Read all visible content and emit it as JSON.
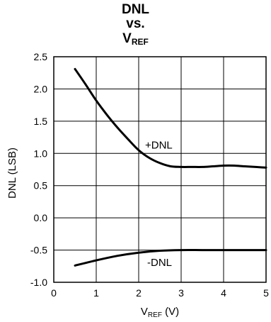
{
  "chart_data": {
    "type": "line",
    "title": {
      "line1": "DNL",
      "line2": "vs.",
      "line3_main": "V",
      "line3_sub": "REF"
    },
    "xlabel": {
      "main": "V",
      "sub": "REF",
      "suffix": " (V)"
    },
    "ylabel": "DNL (LSB)",
    "xlim": [
      0,
      5
    ],
    "ylim": [
      -1.0,
      2.5
    ],
    "x_ticks": [
      {
        "value": 0,
        "label": "0"
      },
      {
        "value": 1,
        "label": "1"
      },
      {
        "value": 2,
        "label": "2"
      },
      {
        "value": 3,
        "label": "3"
      },
      {
        "value": 4,
        "label": "4"
      },
      {
        "value": 5,
        "label": "5"
      }
    ],
    "y_ticks": [
      {
        "value": -1.0,
        "label": "-1.0"
      },
      {
        "value": -0.5,
        "label": "-0.5"
      },
      {
        "value": 0.0,
        "label": "0.0"
      },
      {
        "value": 0.5,
        "label": "0.5"
      },
      {
        "value": 1.0,
        "label": "1.0"
      },
      {
        "value": 1.5,
        "label": "1.5"
      },
      {
        "value": 2.0,
        "label": "2.0"
      },
      {
        "value": 2.5,
        "label": "2.5"
      }
    ],
    "grid": true,
    "series": [
      {
        "name": "+DNL",
        "color": "#000000",
        "x": [
          0.5,
          0.75,
          1.0,
          1.25,
          1.5,
          1.75,
          2.0,
          2.25,
          2.5,
          2.75,
          3.0,
          3.25,
          3.5,
          3.75,
          4.0,
          4.25,
          4.5,
          4.75,
          5.0
        ],
        "y": [
          2.31,
          2.07,
          1.82,
          1.6,
          1.4,
          1.22,
          1.05,
          0.93,
          0.85,
          0.8,
          0.79,
          0.79,
          0.79,
          0.8,
          0.81,
          0.81,
          0.8,
          0.79,
          0.78
        ]
      },
      {
        "name": "-DNL",
        "color": "#000000",
        "x": [
          0.5,
          1.0,
          1.5,
          2.0,
          2.5,
          3.0,
          3.5,
          4.0,
          4.5,
          5.0
        ],
        "y": [
          -0.74,
          -0.66,
          -0.59,
          -0.54,
          -0.51,
          -0.5,
          -0.5,
          -0.5,
          -0.5,
          -0.5
        ]
      }
    ],
    "annotations": [
      {
        "text": "+DNL",
        "x": 2.15,
        "y": 1.13
      },
      {
        "text": "-DNL",
        "x": 2.2,
        "y": -0.69
      }
    ]
  }
}
